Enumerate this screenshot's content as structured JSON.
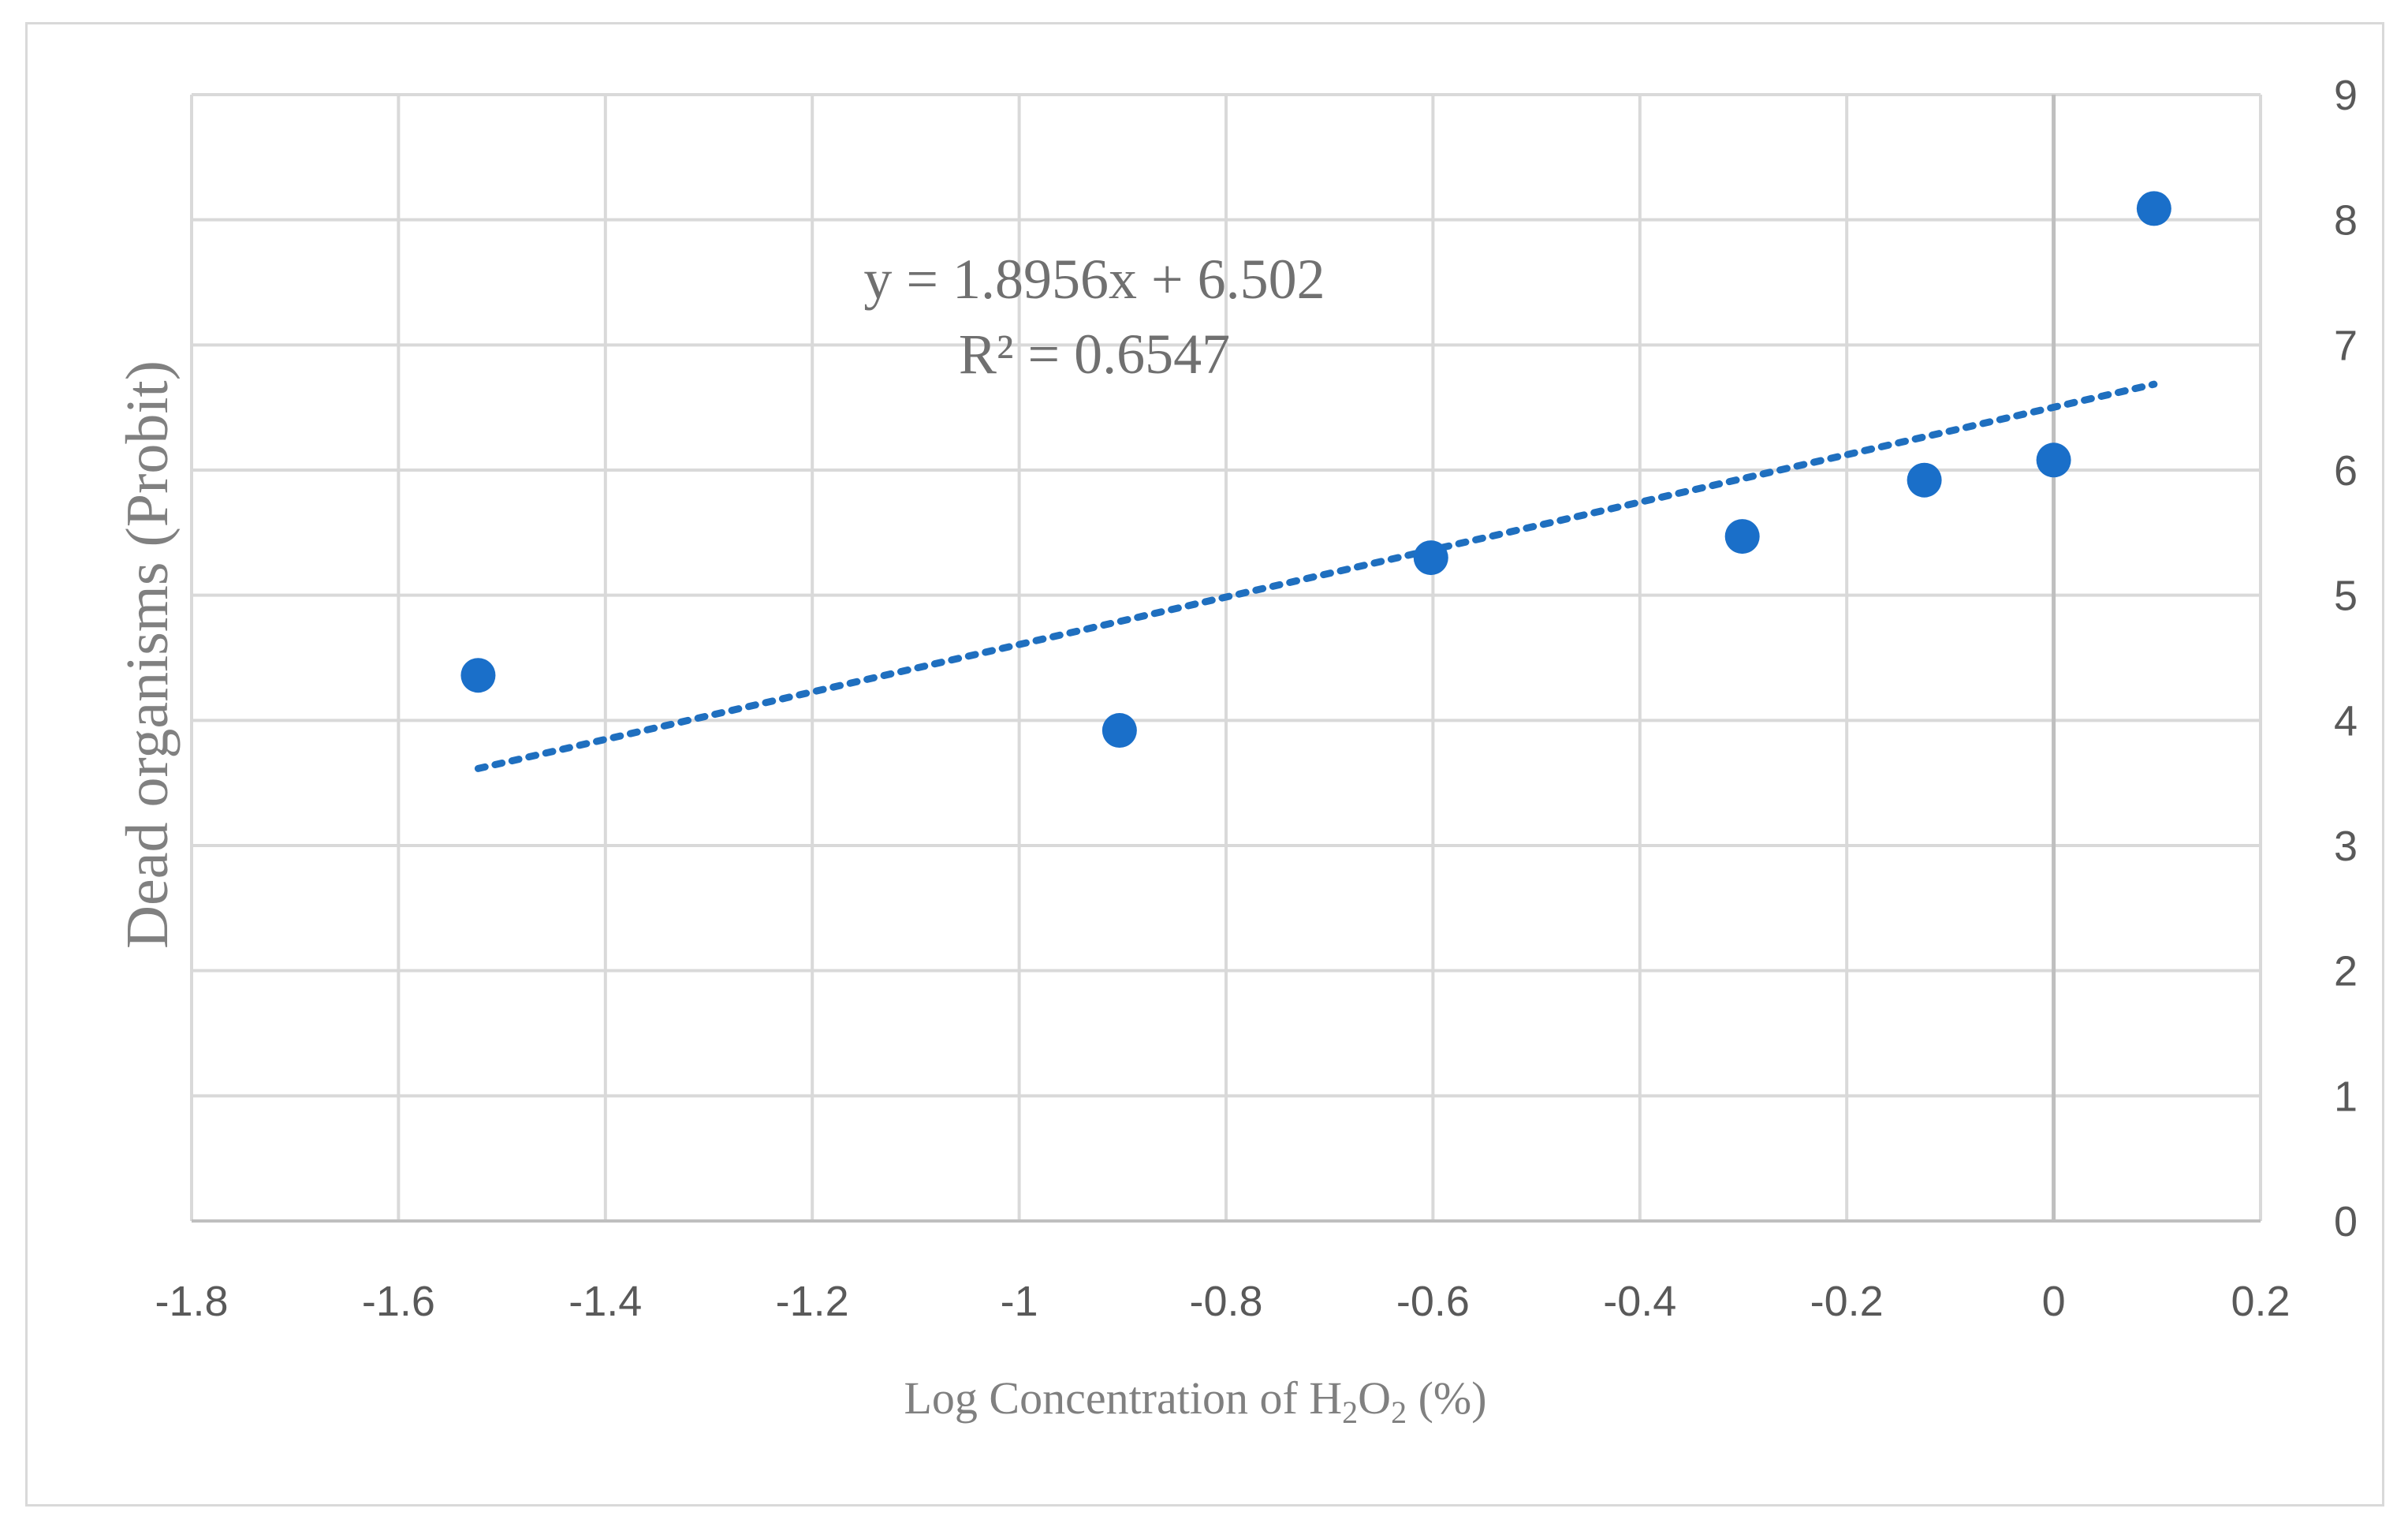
{
  "chart_data": {
    "type": "scatter",
    "title": "",
    "xlabel_prefix": "Log Concentration of H",
    "xlabel_sub1": "2",
    "xlabel_mid": "O",
    "xlabel_sub2": "2",
    "xlabel_suffix": " (%)",
    "ylabel": "Dead organisms (Probit)",
    "xlim": [
      -1.8,
      0.2
    ],
    "ylim": [
      0,
      9
    ],
    "x_ticks": [
      "-1.8",
      "-1.6",
      "-1.4",
      "-1.2",
      "-1",
      "-0.8",
      "-0.6",
      "-0.4",
      "-0.2",
      "0",
      "0.2"
    ],
    "x_tick_values": [
      -1.8,
      -1.6,
      -1.4,
      -1.2,
      -1.0,
      -0.8,
      -0.6,
      -0.4,
      -0.2,
      0,
      0.2
    ],
    "y_ticks": [
      "0",
      "1",
      "2",
      "3",
      "4",
      "5",
      "6",
      "7",
      "8",
      "9"
    ],
    "y_tick_values": [
      0,
      1,
      2,
      3,
      4,
      5,
      6,
      7,
      8,
      9
    ],
    "y_axis_side": "right",
    "grid": true,
    "series": [
      {
        "name": "Probit",
        "color": "#1a6fc9",
        "x": [
          -1.523,
          -0.903,
          -0.602,
          -0.301,
          -0.125,
          0.0,
          0.097
        ],
        "y": [
          4.36,
          3.92,
          5.3,
          5.47,
          5.92,
          6.08,
          8.09
        ]
      }
    ],
    "trendline": {
      "slope": 1.8956,
      "intercept": 6.502,
      "x_range": [
        -1.523,
        0.097
      ],
      "color": "#1f6fbf",
      "style": "dotted",
      "equation": "y = 1.8956x + 6.502",
      "r_squared": "R² = 0.6547"
    }
  }
}
